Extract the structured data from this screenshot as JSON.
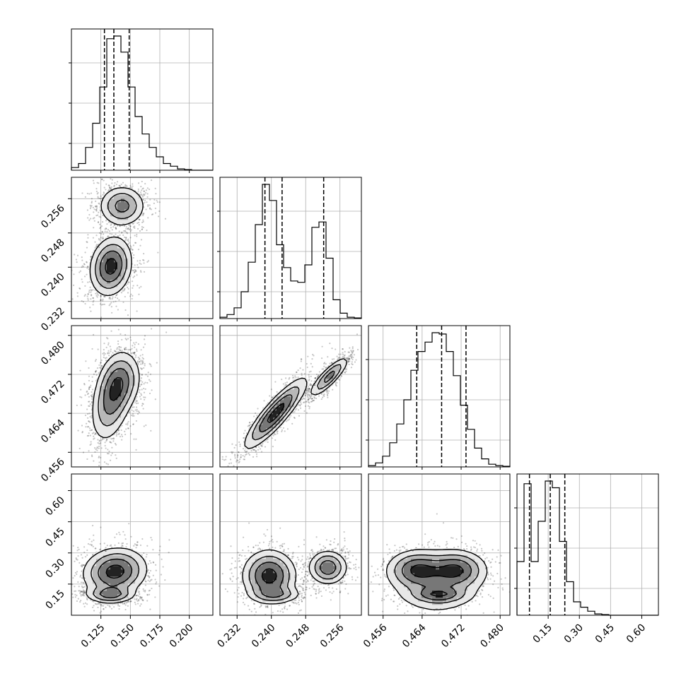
{
  "chart_data": {
    "type": "corner",
    "parameters": [
      {
        "label": "",
        "range": [
          0.1,
          0.22
        ],
        "ticks": [
          0.125,
          0.15,
          0.175,
          0.2
        ],
        "tick_labels": [
          "0.125",
          "0.150",
          "0.175",
          "0.200"
        ],
        "quantiles": [
          0.128,
          0.136,
          0.149
        ]
      },
      {
        "label": "",
        "range": [
          0.228,
          0.261
        ],
        "ticks": [
          0.232,
          0.24,
          0.248,
          0.256
        ],
        "tick_labels": [
          "0.232",
          "0.240",
          "0.248",
          "0.256"
        ],
        "quantiles": [
          0.2385,
          0.2425,
          0.2522
        ]
      },
      {
        "label": "",
        "range": [
          0.453,
          0.482
        ],
        "ticks": [
          0.456,
          0.464,
          0.472,
          0.48
        ],
        "tick_labels": [
          "0.456",
          "0.464",
          "0.472",
          "0.480"
        ],
        "quantiles": [
          0.4629,
          0.468,
          0.473
        ]
      },
      {
        "label": "",
        "range": [
          0.0,
          0.68
        ],
        "ticks": [
          0.15,
          0.3,
          0.45,
          0.6
        ],
        "tick_labels": [
          "0.15",
          "0.30",
          "0.45",
          "0.60"
        ],
        "quantiles": [
          0.06,
          0.16,
          0.23
        ]
      }
    ],
    "histograms": [
      {
        "param": 0,
        "bin_edges_range": [
          0.1,
          0.22
        ],
        "counts": [
          0.02,
          0.05,
          0.17,
          0.35,
          0.62,
          0.98,
          1.0,
          0.88,
          0.62,
          0.4,
          0.27,
          0.17,
          0.1,
          0.05,
          0.03,
          0.01,
          0.005,
          0,
          0,
          0
        ]
      },
      {
        "param": 1,
        "bin_edges_range": [
          0.228,
          0.261
        ],
        "counts": [
          0.01,
          0.03,
          0.08,
          0.2,
          0.42,
          0.7,
          1.0,
          0.88,
          0.55,
          0.38,
          0.28,
          0.27,
          0.4,
          0.68,
          0.72,
          0.45,
          0.14,
          0.04,
          0.01,
          0.005
        ]
      },
      {
        "param": 2,
        "bin_edges_range": [
          0.453,
          0.482
        ],
        "counts": [
          0.01,
          0.03,
          0.08,
          0.18,
          0.32,
          0.5,
          0.72,
          0.86,
          0.93,
          1.0,
          0.99,
          0.86,
          0.68,
          0.46,
          0.28,
          0.14,
          0.06,
          0.02,
          0.01,
          0.005
        ]
      },
      {
        "param": 3,
        "bin_edges_range": [
          0.0,
          0.68
        ],
        "counts": [
          0.4,
          0.98,
          0.4,
          0.7,
          1.0,
          0.95,
          0.55,
          0.25,
          0.1,
          0.06,
          0.03,
          0.01,
          0.005,
          0,
          0,
          0,
          0,
          0,
          0,
          0
        ]
      }
    ],
    "pairs": [
      {
        "x": 0,
        "y": 1,
        "blobs": [
          {
            "cx": 0.1335,
            "cy": 0.2402,
            "sx": 0.0085,
            "sy": 0.0033,
            "rho": 0.15,
            "w": 0.6
          },
          {
            "cx": 0.143,
            "cy": 0.2543,
            "sx": 0.0095,
            "sy": 0.0023,
            "rho": 0.0,
            "w": 0.4
          }
        ]
      },
      {
        "x": 0,
        "y": 2,
        "blobs": [
          {
            "cx": 0.134,
            "cy": 0.4668,
            "sx": 0.0085,
            "sy": 0.0042,
            "rho": 0.35,
            "w": 0.55
          },
          {
            "cx": 0.142,
            "cy": 0.4705,
            "sx": 0.0085,
            "sy": 0.003,
            "rho": 0.15,
            "w": 0.45
          }
        ]
      },
      {
        "x": 0,
        "y": 3,
        "blobs": [
          {
            "cx": 0.137,
            "cy": 0.21,
            "sx": 0.013,
            "sy": 0.055,
            "rho": 0.1,
            "w": 0.6
          },
          {
            "cx": 0.133,
            "cy": 0.1,
            "sx": 0.01,
            "sy": 0.02,
            "rho": 0.0,
            "w": 0.4
          }
        ]
      },
      {
        "x": 1,
        "y": 2,
        "blobs": [
          {
            "cx": 0.241,
            "cy": 0.464,
            "sx": 0.0035,
            "sy": 0.0035,
            "rho": 0.88,
            "w": 0.6
          },
          {
            "cx": 0.2535,
            "cy": 0.4715,
            "sx": 0.0022,
            "sy": 0.002,
            "rho": 0.85,
            "w": 0.4
          }
        ]
      },
      {
        "x": 1,
        "y": 3,
        "blobs": [
          {
            "cx": 0.2395,
            "cy": 0.19,
            "sx": 0.003,
            "sy": 0.06,
            "rho": 0.0,
            "w": 0.45
          },
          {
            "cx": 0.241,
            "cy": 0.1,
            "sx": 0.003,
            "sy": 0.02,
            "rho": 0.0,
            "w": 0.2
          },
          {
            "cx": 0.2532,
            "cy": 0.23,
            "sx": 0.0022,
            "sy": 0.04,
            "rho": 0.0,
            "w": 0.35
          }
        ]
      },
      {
        "x": 2,
        "y": 3,
        "blobs": [
          {
            "cx": 0.463,
            "cy": 0.22,
            "sx": 0.003,
            "sy": 0.045,
            "rho": 0.0,
            "w": 0.3
          },
          {
            "cx": 0.471,
            "cy": 0.22,
            "sx": 0.003,
            "sy": 0.045,
            "rho": 0.0,
            "w": 0.3
          },
          {
            "cx": 0.4675,
            "cy": 0.1,
            "sx": 0.0028,
            "sy": 0.02,
            "rho": 0.0,
            "w": 0.25
          },
          {
            "cx": 0.467,
            "cy": 0.15,
            "sx": 0.005,
            "sy": 0.08,
            "rho": 0.0,
            "w": 0.15
          }
        ]
      }
    ],
    "sample_count_per_panel": 1800,
    "contour_levels": [
      0.12,
      0.3,
      0.55,
      0.85
    ],
    "grid": true,
    "quantile_line_style": "dashed"
  }
}
